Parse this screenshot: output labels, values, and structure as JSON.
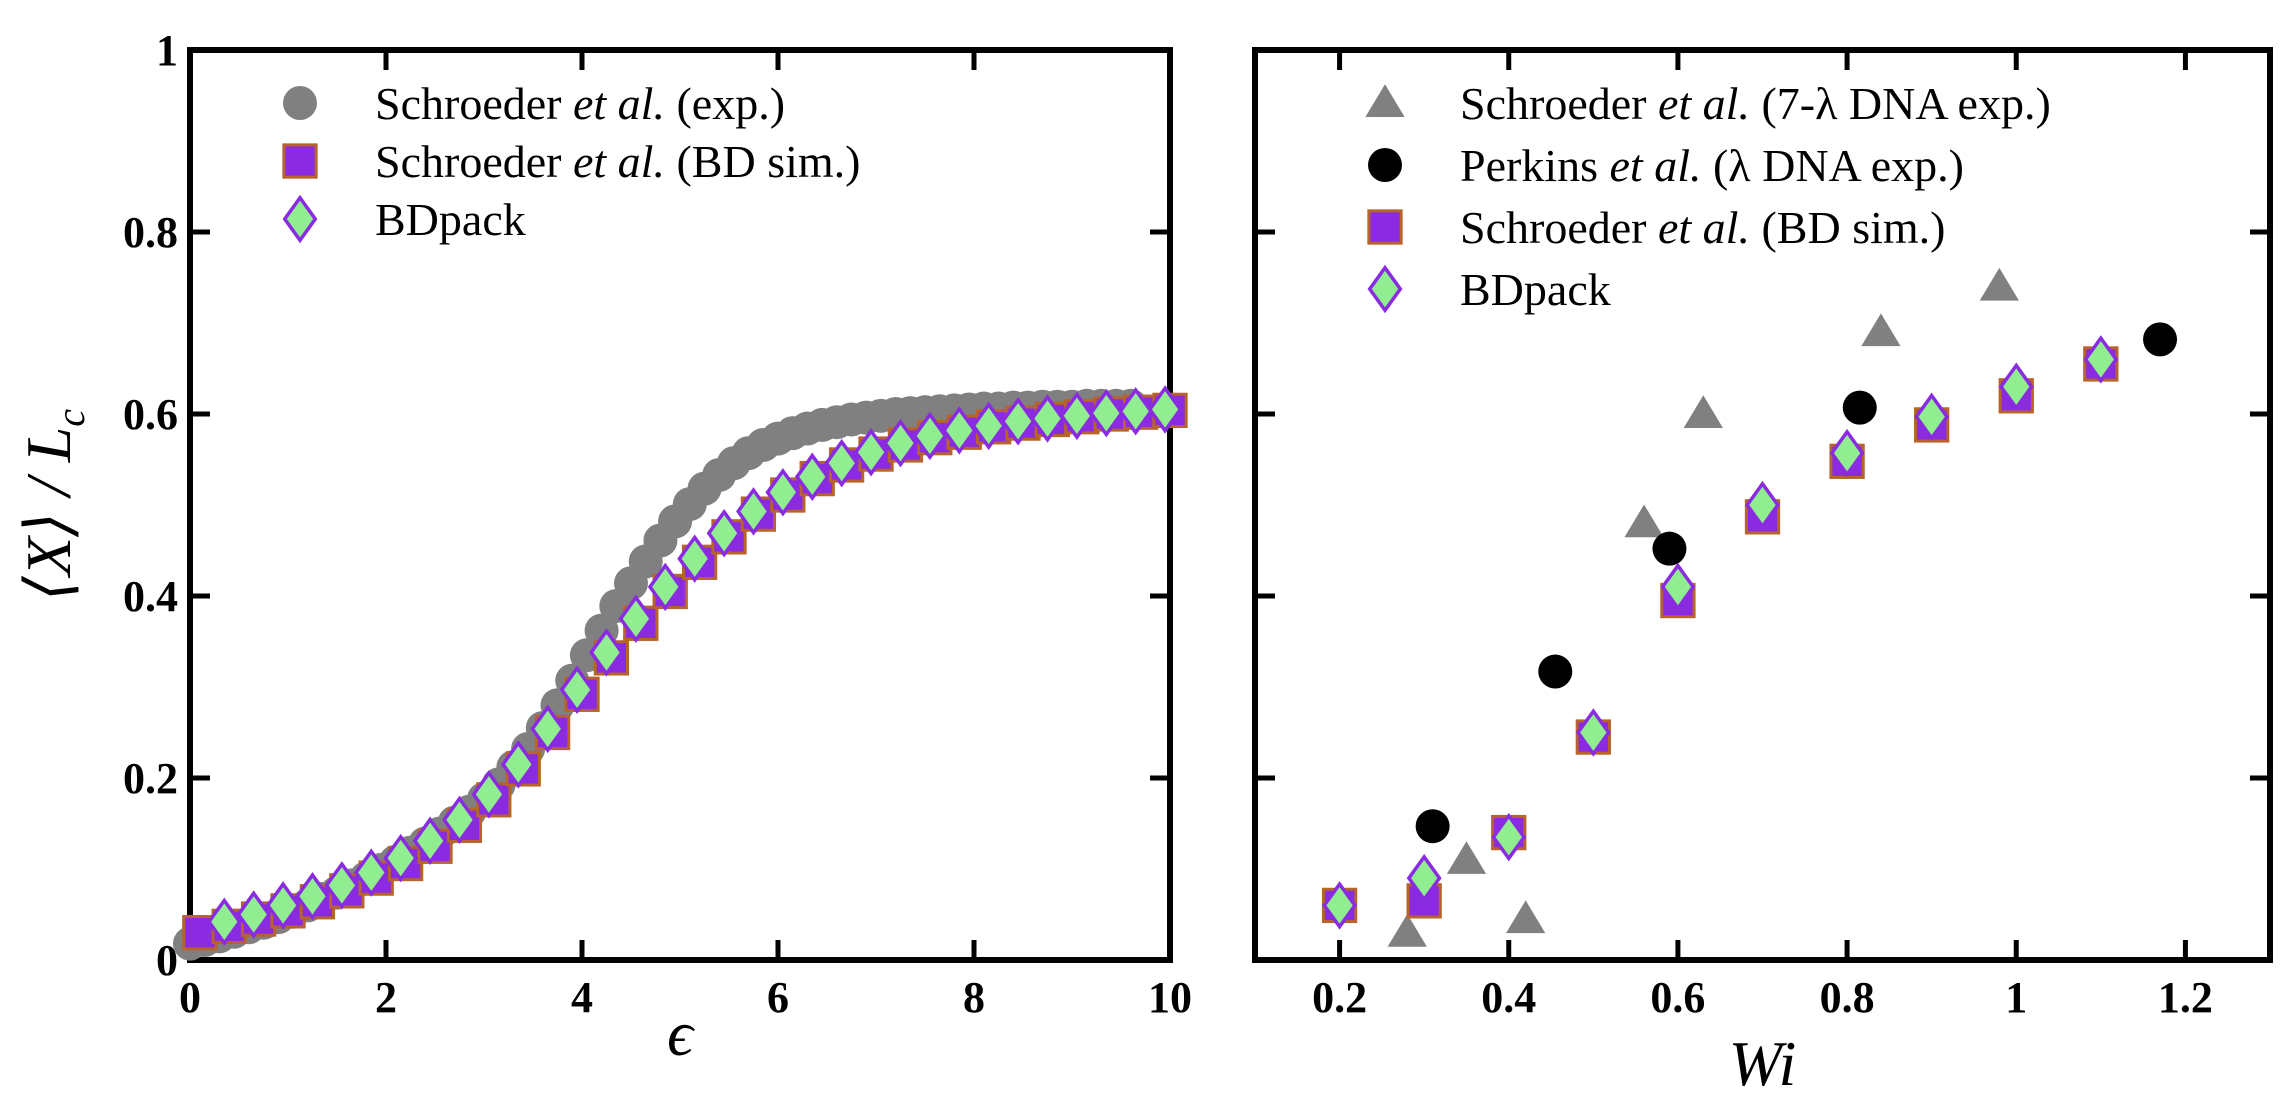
{
  "chart_data": [
    {
      "type": "scatter",
      "panel": "left",
      "xlabel": "ϵ",
      "ylabel": "⟨X⟩ / L",
      "ylabel_sub": "c",
      "xlim": [
        0,
        10
      ],
      "ylim": [
        0,
        1
      ],
      "xticks": [
        0,
        2,
        4,
        6,
        8,
        10
      ],
      "xtick_labels": [
        "0",
        "2",
        "4",
        "6",
        "8",
        "10"
      ],
      "yticks": [
        0,
        0.2,
        0.4,
        0.6,
        0.8,
        1
      ],
      "ytick_labels": [
        "0",
        "0.2",
        "0.4",
        "0.6",
        "0.8",
        "1"
      ],
      "legend_position": "top-left",
      "series": [
        {
          "name": "Schroeder et al. (exp.)",
          "label_parts": [
            "Schroeder ",
            "et al.",
            " (exp.)"
          ],
          "marker": "circle",
          "color": "#808080",
          "x": [
            0.0,
            0.15,
            0.3,
            0.45,
            0.6,
            0.75,
            0.9,
            1.05,
            1.2,
            1.35,
            1.5,
            1.65,
            1.8,
            1.95,
            2.1,
            2.25,
            2.4,
            2.55,
            2.7,
            2.85,
            3.0,
            3.15,
            3.3,
            3.45,
            3.6,
            3.75,
            3.9,
            4.05,
            4.2,
            4.35,
            4.5,
            4.65,
            4.8,
            4.95,
            5.1,
            5.25,
            5.4,
            5.55,
            5.7,
            5.85,
            6.0,
            6.15,
            6.3,
            6.45,
            6.6,
            6.75,
            6.9,
            7.05,
            7.2,
            7.35,
            7.5,
            7.65,
            7.8,
            7.95,
            8.1,
            8.25,
            8.4,
            8.55,
            8.7,
            8.85,
            9.0,
            9.15,
            9.3,
            9.45,
            9.6
          ],
          "y": [
            0.018,
            0.022,
            0.026,
            0.031,
            0.036,
            0.041,
            0.047,
            0.053,
            0.06,
            0.067,
            0.074,
            0.082,
            0.09,
            0.099,
            0.108,
            0.118,
            0.128,
            0.139,
            0.151,
            0.163,
            0.177,
            0.193,
            0.212,
            0.232,
            0.255,
            0.28,
            0.307,
            0.335,
            0.362,
            0.389,
            0.414,
            0.438,
            0.461,
            0.482,
            0.501,
            0.518,
            0.533,
            0.546,
            0.557,
            0.566,
            0.573,
            0.579,
            0.584,
            0.588,
            0.591,
            0.594,
            0.596,
            0.598,
            0.6,
            0.601,
            0.602,
            0.603,
            0.604,
            0.605,
            0.606,
            0.606,
            0.607,
            0.607,
            0.608,
            0.608,
            0.608,
            0.609,
            0.609,
            0.609,
            0.609
          ]
        },
        {
          "name": "Schroeder et al. (BD sim.)",
          "label_parts": [
            "Schroeder ",
            "et al.",
            " (BD sim.)"
          ],
          "marker": "square",
          "color": "#8a2be2",
          "edge": "#b8632c",
          "x": [
            0.1,
            0.4,
            0.7,
            1.0,
            1.3,
            1.6,
            1.9,
            2.2,
            2.5,
            2.8,
            3.1,
            3.4,
            3.7,
            4.0,
            4.3,
            4.6,
            4.9,
            5.2,
            5.5,
            5.8,
            6.1,
            6.4,
            6.7,
            7.0,
            7.3,
            7.6,
            7.9,
            8.2,
            8.5,
            8.8,
            9.1,
            9.4,
            9.7,
            10.0
          ],
          "y": [
            0.03,
            0.037,
            0.045,
            0.054,
            0.064,
            0.076,
            0.09,
            0.106,
            0.125,
            0.148,
            0.176,
            0.21,
            0.25,
            0.292,
            0.332,
            0.37,
            0.405,
            0.437,
            0.465,
            0.49,
            0.511,
            0.529,
            0.544,
            0.556,
            0.566,
            0.574,
            0.58,
            0.586,
            0.59,
            0.594,
            0.597,
            0.6,
            0.602,
            0.604
          ]
        },
        {
          "name": "BDpack",
          "label_parts": [
            "BDpack"
          ],
          "marker": "diamond",
          "color": "#90ee90",
          "edge": "#8a2be2",
          "x": [
            0.35,
            0.65,
            0.95,
            1.25,
            1.55,
            1.85,
            2.15,
            2.45,
            2.75,
            3.05,
            3.35,
            3.65,
            3.95,
            4.25,
            4.55,
            4.85,
            5.15,
            5.45,
            5.75,
            6.05,
            6.35,
            6.65,
            6.95,
            7.25,
            7.55,
            7.85,
            8.15,
            8.45,
            8.75,
            9.05,
            9.35,
            9.65,
            9.95
          ],
          "y": [
            0.042,
            0.05,
            0.06,
            0.07,
            0.082,
            0.096,
            0.112,
            0.131,
            0.154,
            0.182,
            0.215,
            0.254,
            0.297,
            0.338,
            0.375,
            0.41,
            0.441,
            0.469,
            0.493,
            0.514,
            0.531,
            0.546,
            0.558,
            0.568,
            0.576,
            0.582,
            0.587,
            0.592,
            0.595,
            0.598,
            0.601,
            0.603,
            0.605
          ]
        }
      ]
    },
    {
      "type": "scatter",
      "panel": "right",
      "xlabel": "Wi",
      "xlim": [
        0.1,
        1.3
      ],
      "ylim": [
        0,
        1
      ],
      "xticks": [
        0.2,
        0.4,
        0.6,
        0.8,
        1.0,
        1.2
      ],
      "xtick_labels": [
        "0.2",
        "0.4",
        "0.6",
        "0.8",
        "1",
        "1.2"
      ],
      "yticks": [
        0,
        0.2,
        0.4,
        0.6,
        0.8,
        1
      ],
      "legend_position": "top-left",
      "series": [
        {
          "name": "Schroeder et al. (7-λ DNA exp.)",
          "label_parts": [
            "Schroeder ",
            "et al.",
            " (7-λ DNA exp.)"
          ],
          "marker": "triangle",
          "color": "#808080",
          "x": [
            0.28,
            0.35,
            0.42,
            0.56,
            0.63,
            0.84,
            0.98
          ],
          "y": [
            0.03,
            0.11,
            0.045,
            0.48,
            0.6,
            0.69,
            0.74
          ]
        },
        {
          "name": "Perkins et al. (λ DNA exp.)",
          "label_parts": [
            "Perkins ",
            "et al.",
            " (λ DNA exp.)"
          ],
          "marker": "circle",
          "color": "#000000",
          "x": [
            0.31,
            0.455,
            0.59,
            0.815,
            1.17
          ],
          "y": [
            0.147,
            0.317,
            0.452,
            0.607,
            0.682
          ]
        },
        {
          "name": "Schroeder et al. (BD sim.)",
          "label_parts": [
            "Schroeder ",
            "et al.",
            " (BD sim.)"
          ],
          "marker": "square",
          "color": "#8a2be2",
          "edge": "#b8632c",
          "x": [
            0.2,
            0.3,
            0.4,
            0.5,
            0.6,
            0.7,
            0.8,
            0.9,
            1.0,
            1.1
          ],
          "y": [
            0.06,
            0.065,
            0.14,
            0.245,
            0.395,
            0.487,
            0.548,
            0.588,
            0.62,
            0.655
          ]
        },
        {
          "name": "BDpack",
          "label_parts": [
            "BDpack"
          ],
          "marker": "diamond",
          "color": "#90ee90",
          "edge": "#8a2be2",
          "x": [
            0.2,
            0.3,
            0.4,
            0.5,
            0.6,
            0.7,
            0.8,
            0.9,
            1.0,
            1.1
          ],
          "y": [
            0.06,
            0.09,
            0.135,
            0.25,
            0.41,
            0.5,
            0.557,
            0.597,
            0.63,
            0.66
          ]
        }
      ]
    }
  ]
}
